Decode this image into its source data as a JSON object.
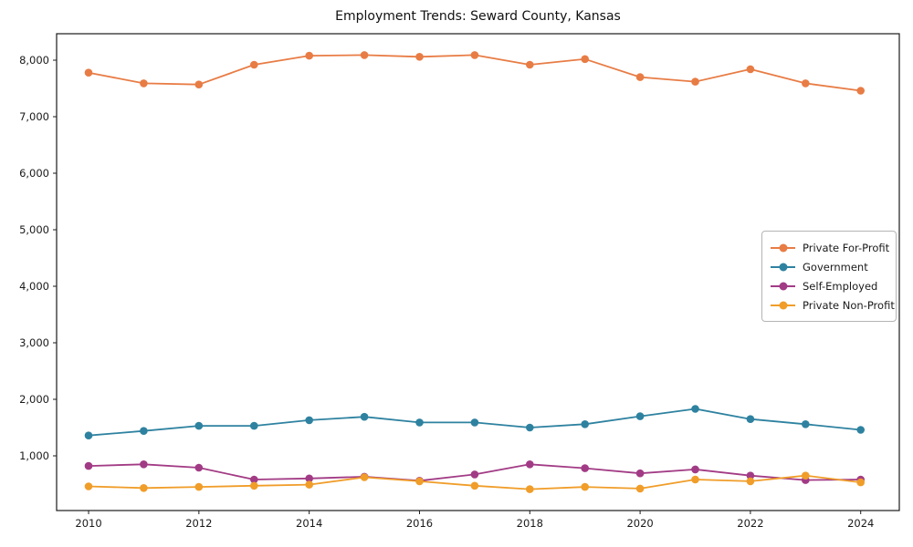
{
  "chart_data": {
    "type": "line",
    "title": "Employment Trends: Seward County, Kansas",
    "xlabel": "",
    "ylabel": "",
    "x": [
      2010,
      2011,
      2012,
      2013,
      2014,
      2015,
      2016,
      2017,
      2018,
      2019,
      2020,
      2021,
      2022,
      2023,
      2024
    ],
    "x_tick_labels": [
      "2010",
      "2012",
      "2014",
      "2016",
      "2018",
      "2020",
      "2022",
      "2024"
    ],
    "x_ticks": [
      2010,
      2012,
      2014,
      2016,
      2018,
      2020,
      2022,
      2024
    ],
    "y_ticks": [
      1000,
      2000,
      3000,
      4000,
      5000,
      6000,
      7000,
      8000
    ],
    "y_tick_labels": [
      "1,000",
      "2,000",
      "3,000",
      "4,000",
      "5,000",
      "6,000",
      "7,000",
      "8,000"
    ],
    "xlim": [
      2009.42,
      2024.7
    ],
    "ylim": [
      32,
      8468
    ],
    "grid": false,
    "legend_position": "center right",
    "marker": "circle",
    "series": [
      {
        "name": "Private For-Profit",
        "color": "#e87c45",
        "values": [
          7780,
          7590,
          7570,
          7920,
          8080,
          8090,
          8060,
          8090,
          7920,
          8020,
          7700,
          7620,
          7840,
          7590,
          7460
        ]
      },
      {
        "name": "Government",
        "color": "#2e82a0",
        "values": [
          1360,
          1440,
          1530,
          1530,
          1630,
          1690,
          1590,
          1590,
          1500,
          1560,
          1700,
          1830,
          1650,
          1560,
          1460
        ]
      },
      {
        "name": "Self-Employed",
        "color": "#a23b85",
        "values": [
          820,
          850,
          790,
          580,
          600,
          630,
          560,
          670,
          850,
          780,
          690,
          760,
          650,
          570,
          580
        ]
      },
      {
        "name": "Private Non-Profit",
        "color": "#f09d29",
        "values": [
          460,
          430,
          450,
          470,
          490,
          620,
          550,
          470,
          410,
          450,
          420,
          580,
          550,
          650,
          530
        ]
      }
    ]
  }
}
